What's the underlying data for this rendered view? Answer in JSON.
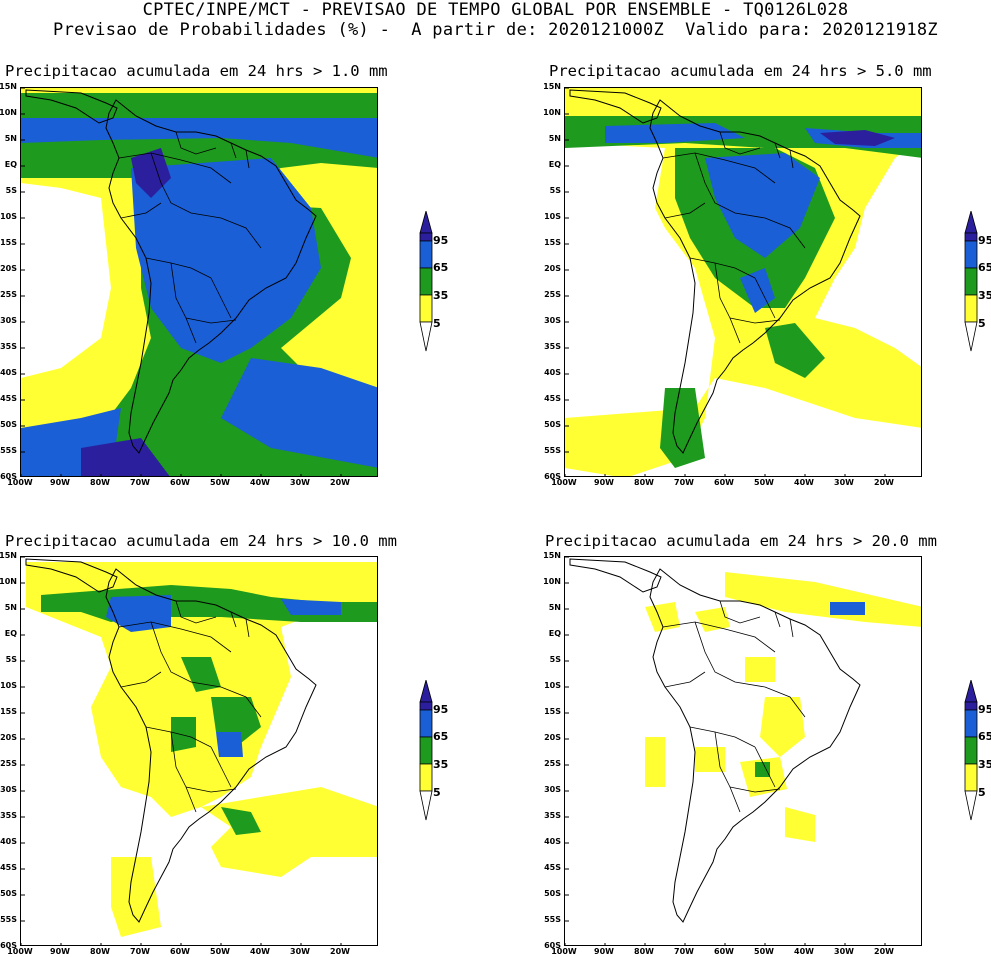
{
  "header": {
    "line1": "CPTEC/INPE/MCT - PREVISAO DE TEMPO GLOBAL POR ENSEMBLE - TQ0126L028",
    "line2": "Previsao de Probabilidades (%) -  A partir de: 2020121000Z  Valido para: 2020121918Z"
  },
  "axes": {
    "lat_labels": [
      "15N",
      "10N",
      "5N",
      "EQ",
      "5S",
      "10S",
      "15S",
      "20S",
      "25S",
      "30S",
      "35S",
      "40S",
      "45S",
      "50S",
      "55S",
      "60S"
    ],
    "lon_labels": [
      "100W",
      "90W",
      "80W",
      "70W",
      "60W",
      "50W",
      "40W",
      "30W",
      "20W"
    ]
  },
  "colorbar": {
    "levels": [
      "95",
      "65",
      "35",
      "5"
    ],
    "colors": {
      "c95": "#2b1f9e",
      "c65": "#1a5fd6",
      "c35": "#1e9a1e",
      "c5": "#ffff33"
    }
  },
  "panels": [
    {
      "title": "Precipitacao acumulada em 24 hrs > 1.0 mm"
    },
    {
      "title": "Precipitacao acumulada em 24 hrs > 5.0 mm"
    },
    {
      "title": "Precipitacao acumulada em 24 hrs > 10.0 mm"
    },
    {
      "title": "Precipitacao acumulada em 24 hrs > 20.0 mm"
    }
  ]
}
